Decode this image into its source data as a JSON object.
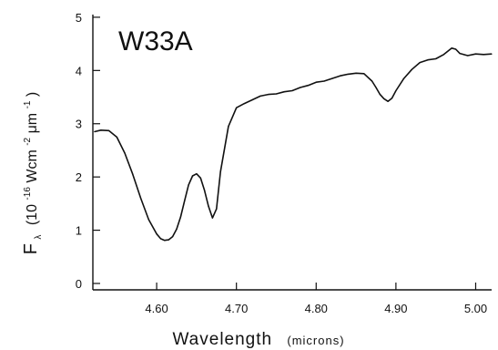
{
  "chart_data": {
    "type": "line",
    "annotation": "W33A",
    "xlabel": "Wavelength",
    "xlabel_unit": "(microns)",
    "ylabel": {
      "symbol": "F",
      "subscript": "λ",
      "open": "(10",
      "exp1": "-16",
      "mid": " Wcm",
      "exp2": "-2",
      "mid2": " μm",
      "exp3": "-1",
      "close": ")"
    },
    "xlim": [
      4.52,
      5.02
    ],
    "ylim": [
      -0.12,
      5.05
    ],
    "x_ticks": [
      4.6,
      4.7,
      4.8,
      4.9,
      5.0
    ],
    "x_tick_labels": [
      "4.60",
      "4.70",
      "4.80",
      "4.90",
      "5.00"
    ],
    "y_ticks": [
      0,
      1,
      2,
      3,
      4,
      5
    ],
    "y_tick_labels": [
      "0",
      "1",
      "2",
      "3",
      "4",
      "5"
    ],
    "grid": false,
    "series": [
      {
        "x": [
          4.522,
          4.53,
          4.54,
          4.55,
          4.56,
          4.57,
          4.58,
          4.59,
          4.6,
          4.605,
          4.61,
          4.615,
          4.62,
          4.625,
          4.63,
          4.635,
          4.64,
          4.645,
          4.65,
          4.655,
          4.66,
          4.665,
          4.67,
          4.675,
          4.68,
          4.69,
          4.7,
          4.71,
          4.72,
          4.73,
          4.74,
          4.75,
          4.76,
          4.77,
          4.78,
          4.79,
          4.8,
          4.81,
          4.82,
          4.83,
          4.84,
          4.85,
          4.86,
          4.87,
          4.875,
          4.88,
          4.885,
          4.89,
          4.895,
          4.9,
          4.91,
          4.92,
          4.93,
          4.94,
          4.95,
          4.96,
          4.97,
          4.975,
          4.98,
          4.99,
          5.0,
          5.01,
          5.02
        ],
        "y": [
          2.85,
          2.88,
          2.87,
          2.75,
          2.45,
          2.05,
          1.6,
          1.2,
          0.93,
          0.84,
          0.81,
          0.82,
          0.88,
          1.02,
          1.25,
          1.55,
          1.85,
          2.02,
          2.06,
          1.98,
          1.75,
          1.45,
          1.23,
          1.4,
          2.1,
          2.95,
          3.3,
          3.38,
          3.45,
          3.52,
          3.55,
          3.56,
          3.6,
          3.62,
          3.68,
          3.72,
          3.78,
          3.8,
          3.85,
          3.9,
          3.93,
          3.95,
          3.94,
          3.8,
          3.68,
          3.55,
          3.47,
          3.42,
          3.48,
          3.62,
          3.85,
          4.02,
          4.15,
          4.2,
          4.22,
          4.3,
          4.42,
          4.4,
          4.32,
          4.28,
          4.31,
          4.3,
          4.31
        ]
      }
    ]
  }
}
